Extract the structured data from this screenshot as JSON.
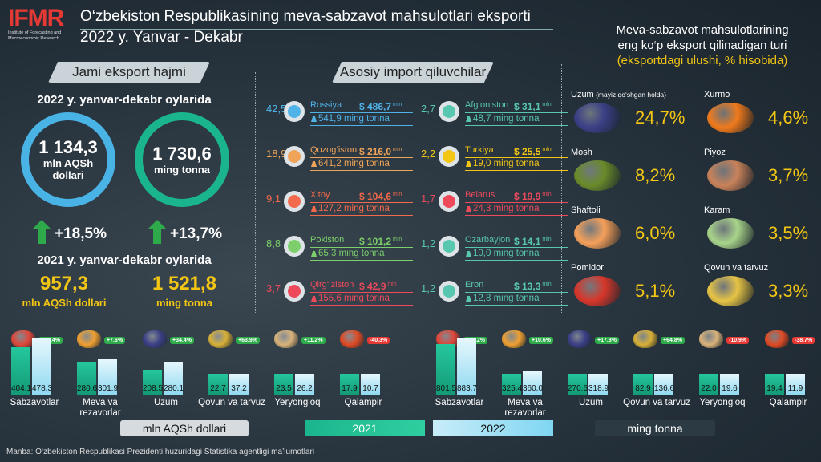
{
  "header": {
    "logo_text": "IFMR",
    "logo_sub": "Institute of Forecasting and Macroeconomic Research",
    "title_line1": "O‘zbekiston Respublikasining meva-sabzavot mahsulotlari eksporti",
    "title_line2": "2022 y. Yanvar - Dekabr"
  },
  "total": {
    "pill": "Jami eksport hajmi",
    "period_2022": "2022 y. yanvar-dekabr oylarida",
    "value_usd": "1 134,3",
    "unit_usd_1": "mln AQSh",
    "unit_usd_2": "dollari",
    "value_ton": "1 730,6",
    "unit_ton": "ming tonna",
    "growth_usd": "+18,5%",
    "growth_ton": "+13,7%",
    "period_2021": "2021 y. yanvar-dekabr oylarida",
    "prev_usd": "957,3",
    "prev_usd_unit": "mln AQSh dollari",
    "prev_ton": "1 521,8",
    "prev_ton_unit": "ming tonna"
  },
  "importers": {
    "pill": "Asosiy import qiluvchilar",
    "rows": [
      {
        "pct": "42,5",
        "name": "Rossiya",
        "usd": "$ 486,7",
        "tons": "541,9 ming tonna",
        "color": "#4fb3e8"
      },
      {
        "pct": "18,9",
        "name": "Qozog‘iston",
        "usd": "$ 216,0",
        "tons": "641,2 ming tonna",
        "color": "#f0a45a"
      },
      {
        "pct": "9,1",
        "name": "Xitoy",
        "usd": "$ 104,6",
        "tons": "127,2 ming tonna",
        "color": "#f26a4b"
      },
      {
        "pct": "8,8",
        "name": "Pokiston",
        "usd": "$ 101,2",
        "tons": "65,3 ming tonna",
        "color": "#7ccf6a"
      },
      {
        "pct": "3,7",
        "name": "Qirg‘iziston",
        "usd": "$ 42,9",
        "tons": "155,6 ming tonna",
        "color": "#ee4a5c"
      },
      {
        "pct": "2,7",
        "name": "Afg‘oniston",
        "usd": "$ 31,1",
        "tons": "48,7 ming tonna",
        "color": "#57c7b0"
      },
      {
        "pct": "2,2",
        "name": "Turkiya",
        "usd": "$ 25,5",
        "tons": "19,0 ming tonna",
        "color": "#f3c614"
      },
      {
        "pct": "1,7",
        "name": "Belarus",
        "usd": "$ 19,9",
        "tons": "24,3 ming tonna",
        "color": "#ee4a5c"
      },
      {
        "pct": "1,2",
        "name": "Ozarbayjon",
        "usd": "$ 14,1",
        "tons": "10,0 ming tonna",
        "color": "#57c7b0"
      },
      {
        "pct": "1,2",
        "name": "Eron",
        "usd": "$ 13,3",
        "tons": "12,8 ming tonna",
        "color": "#57c7b0"
      }
    ],
    "unit_mln": "mln"
  },
  "products": {
    "title_1": "Meva-sabzavot mahsulotlarining",
    "title_2": "eng ko‘p eksport qilinadigan turi",
    "title_3": "(eksportdagi ulushi, % hisobida)",
    "items": [
      {
        "name": "Uzum",
        "note": "(mayiz qo‘shgan holda)",
        "pct": "24,7%",
        "color": "#3b3f86"
      },
      {
        "name": "Xurmo",
        "note": "",
        "pct": "4,6%",
        "color": "#f07a1c"
      },
      {
        "name": "Mosh",
        "note": "",
        "pct": "8,2%",
        "color": "#6a8b2a"
      },
      {
        "name": "Piyoz",
        "note": "",
        "pct": "3,7%",
        "color": "#c9825a"
      },
      {
        "name": "Shaftoli",
        "note": "",
        "pct": "6,0%",
        "color": "#f5a05a"
      },
      {
        "name": "Karam",
        "note": "",
        "pct": "3,5%",
        "color": "#a8d48a"
      },
      {
        "name": "Pomidor",
        "note": "",
        "pct": "5,1%",
        "color": "#d8362a"
      },
      {
        "name": "Qovun va tarvuz",
        "note": "",
        "pct": "3,3%",
        "color": "#e7c445"
      }
    ]
  },
  "chart_data": [
    {
      "type": "bar",
      "title": "mln AQSh dollari",
      "categories": [
        "Sabzavotlar",
        "Meva va rezavorlar",
        "Uzum",
        "Qovun va tarvuz",
        "Yeryong‘oq",
        "Qalampir"
      ],
      "series": [
        {
          "name": "2021",
          "values": [
            404.1,
            280.6,
            208.5,
            22.7,
            23.5,
            17.9
          ]
        },
        {
          "name": "2022",
          "values": [
            478.3,
            301.9,
            280.1,
            37.2,
            26.2,
            10.7
          ]
        }
      ],
      "growth": [
        "+18.4%",
        "+7.6%",
        "+34.4%",
        "+63.9%",
        "+11.2%",
        "-40.3%"
      ],
      "labels_2021": [
        "404.1",
        "280.6",
        "208.5",
        "22.7",
        "23.5",
        "17.9"
      ],
      "labels_2022": [
        "478.3",
        "301.9",
        "280.1",
        "37.2",
        "26.2",
        "10.7"
      ]
    },
    {
      "type": "bar",
      "title": "ming tonna",
      "categories": [
        "Sabzavotlar",
        "Meva va rezavorlar",
        "Uzum",
        "Qovun va tarvuz",
        "Yeryong‘oq",
        "Qalampir"
      ],
      "series": [
        {
          "name": "2021",
          "values": [
            801.5,
            325.4,
            270.6,
            82.9,
            22.0,
            19.4
          ]
        },
        {
          "name": "2022",
          "values": [
            883.7,
            360.0,
            318.9,
            136.6,
            19.6,
            11.9
          ]
        }
      ],
      "growth": [
        "+10.2%",
        "+10.6%",
        "+17.8%",
        "+64.8%",
        "-10.9%",
        "-38.7%"
      ],
      "labels_2021": [
        "801.5",
        "325.4",
        "270.6",
        "82.9",
        "22.0",
        "19.4"
      ],
      "labels_2022": [
        "883.7",
        "360.0",
        "318.9",
        "136.6",
        "19.6",
        "11.9"
      ]
    }
  ],
  "legend": {
    "unit_usd": "mln AQSh dollari",
    "y2021": "2021",
    "y2022": "2022",
    "unit_ton": "ming tonna"
  },
  "footer": "Manba: O‘zbekiston Respublikasi Prezidenti huzuridagi Statistika agentligi ma’lumotlari",
  "colors": {
    "y2021": "#1bb58d",
    "y2022": "#c8ecf8",
    "up": "#2eaa4a",
    "down": "#e53935",
    "gold": "#f3c614"
  }
}
